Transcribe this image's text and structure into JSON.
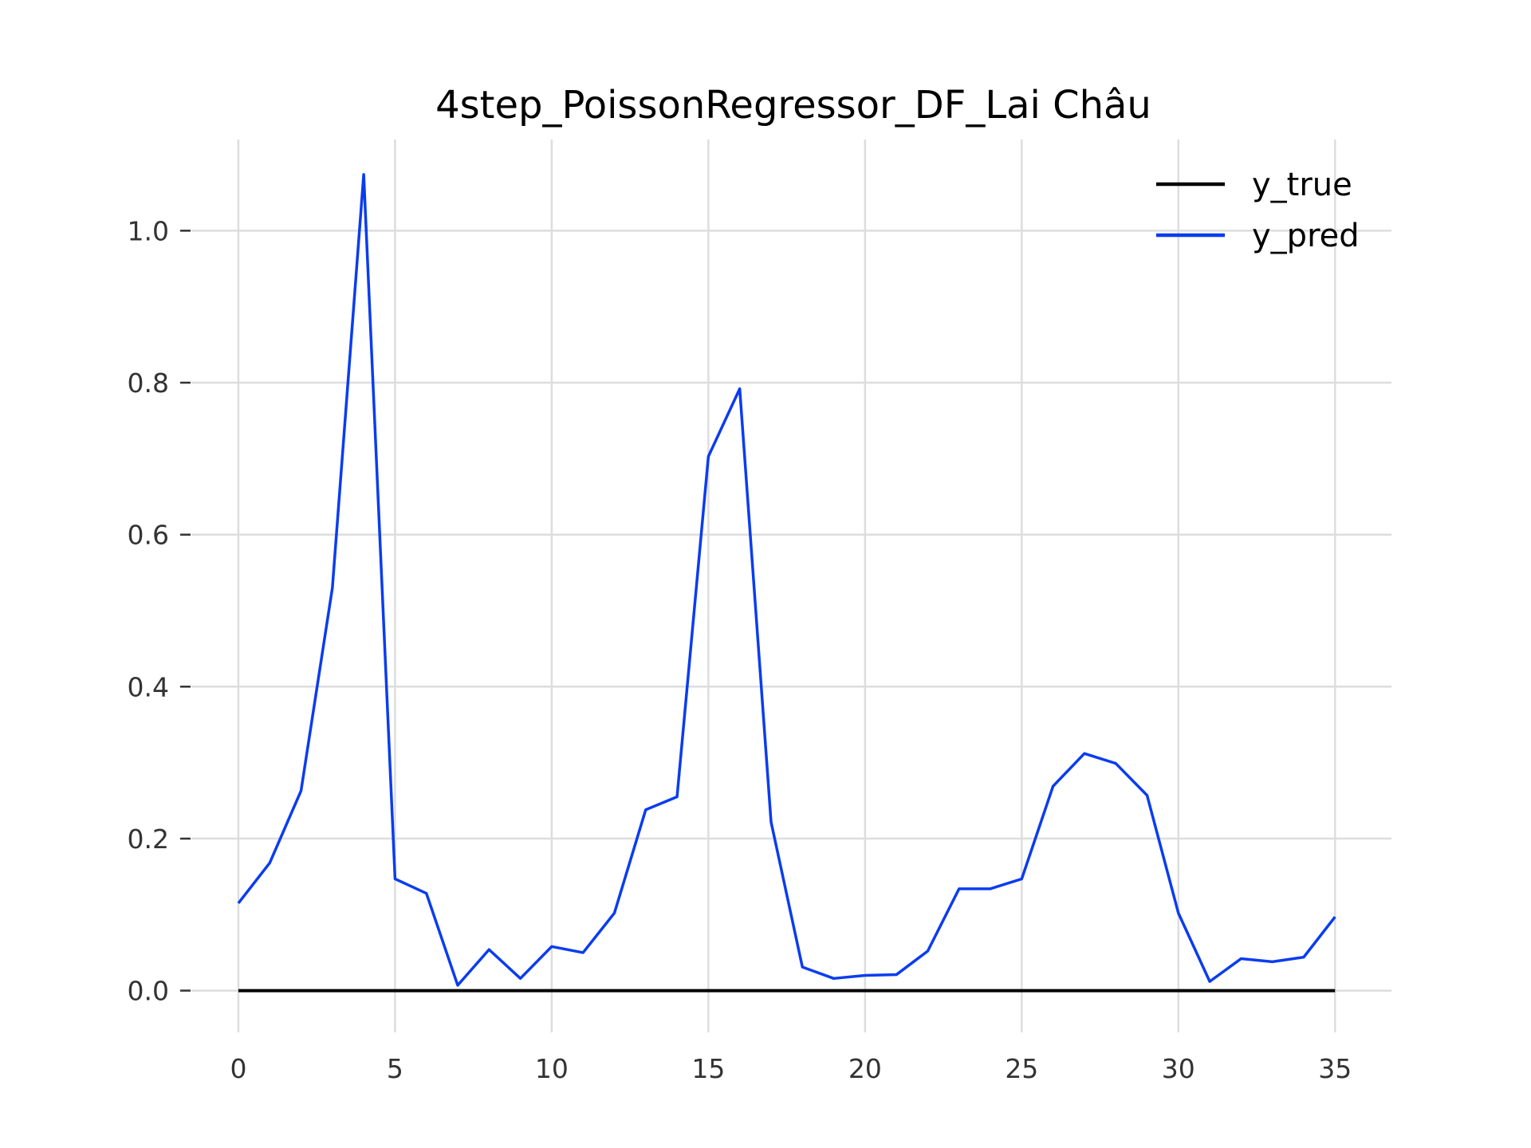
{
  "chart_data": {
    "type": "line",
    "title": "4step_PoissonRegressor_DF_Lai Châu",
    "xlabel": "",
    "ylabel": "",
    "xlim": [
      -1.5,
      36.8
    ],
    "ylim": [
      -0.055,
      1.12
    ],
    "x_ticks": [
      0,
      5,
      10,
      15,
      20,
      25,
      30,
      35
    ],
    "y_ticks": [
      0.0,
      0.2,
      0.4,
      0.6,
      0.8,
      1.0
    ],
    "y_tick_labels": [
      "0.0",
      "0.2",
      "0.4",
      "0.6",
      "0.8",
      "1.0"
    ],
    "grid": true,
    "legend_position": "top-right",
    "x": [
      0,
      1,
      2,
      3,
      4,
      5,
      6,
      7,
      8,
      9,
      10,
      11,
      12,
      13,
      14,
      15,
      16,
      17,
      18,
      19,
      20,
      21,
      22,
      23,
      24,
      25,
      26,
      27,
      28,
      29,
      30,
      31,
      32,
      33,
      34,
      35
    ],
    "series": [
      {
        "name": "y_true",
        "color": "#000000",
        "values": [
          0,
          0,
          0,
          0,
          0,
          0,
          0,
          0,
          0,
          0,
          0,
          0,
          0,
          0,
          0,
          0,
          0,
          0,
          0,
          0,
          0,
          0,
          0,
          0,
          0,
          0,
          0,
          0,
          0,
          0,
          0,
          0,
          0,
          0,
          0,
          0
        ]
      },
      {
        "name": "y_pred",
        "color": "#0a3cf0",
        "values": [
          0.115,
          0.168,
          0.263,
          0.53,
          1.074,
          0.147,
          0.128,
          0.007,
          0.054,
          0.016,
          0.058,
          0.05,
          0.102,
          0.238,
          0.255,
          0.703,
          0.792,
          0.222,
          0.031,
          0.016,
          0.02,
          0.021,
          0.052,
          0.134,
          0.134,
          0.147,
          0.269,
          0.312,
          0.299,
          0.257,
          0.102,
          0.012,
          0.042,
          0.038,
          0.044,
          0.097
        ]
      }
    ]
  }
}
